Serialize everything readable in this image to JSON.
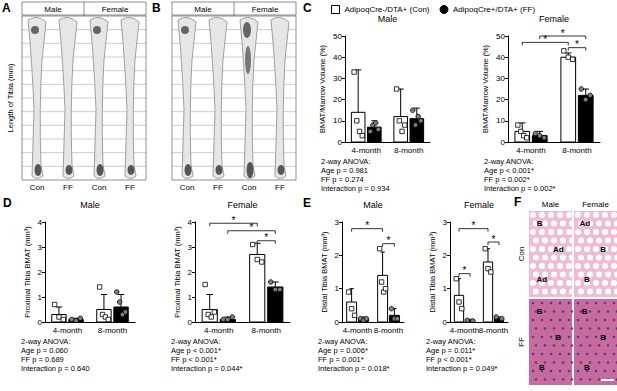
{
  "panels": {
    "A": {
      "label": "A",
      "columns": [
        "Male",
        "Female"
      ],
      "groups": [
        "Con",
        "FF",
        "Con",
        "FF"
      ],
      "ylabel": "Length of Tibia (mm)"
    },
    "B": {
      "label": "B",
      "columns": [
        "Male",
        "Female"
      ],
      "groups": [
        "Con",
        "FF",
        "Con",
        "FF"
      ]
    },
    "F": {
      "label": "F",
      "columns": [
        "Male",
        "Female"
      ],
      "rows": [
        "Con",
        "FF"
      ],
      "tiles": [
        [
          [
            "B",
            "Ad",
            "Ad"
          ],
          [
            "Ad",
            "B",
            "B"
          ]
        ],
        [
          [
            "B",
            "B",
            "B"
          ],
          [
            "B",
            "B",
            "B"
          ]
        ]
      ]
    }
  },
  "chart_data": [
    {
      "type": "bar",
      "panel": "C",
      "title": "Male",
      "legend": "top",
      "categories": [
        "4-month",
        "8-month"
      ],
      "ylabel": "BMAT/Marrow Volume (%)",
      "ylim": [
        0,
        50
      ],
      "yticks": [
        0,
        10,
        20,
        30,
        40,
        50
      ],
      "grid": false,
      "series": [
        {
          "name": "AdipoqCre-/DTA+ (Con)",
          "color": "#ffffff",
          "marker": "square",
          "values": [
            14,
            12
          ],
          "errors": [
            20,
            13
          ],
          "points": [
            [
              33,
              10,
              5,
              3
            ],
            [
              25,
              10,
              5,
              8
            ]
          ]
        },
        {
          "name": "AdipoqCre+/DTA+ (FF)",
          "color": "#000000",
          "marker": "circle",
          "values": [
            7,
            11
          ],
          "errors": [
            3,
            5
          ],
          "points": [
            [
              5,
              8,
              9,
              6
            ],
            [
              15,
              8,
              12,
              10
            ]
          ]
        }
      ],
      "significance": [],
      "annotations": [
        "2-way ANOVA:",
        "Age p = 0.981",
        "FF p = 0.274",
        "Interaction p = 0.934"
      ]
    },
    {
      "type": "bar",
      "title": "Female",
      "categories": [
        "4-month",
        "8-month"
      ],
      "ylabel": "BMAT/Marrow Volume (%)",
      "ylim": [
        0,
        50
      ],
      "yticks": [
        0,
        10,
        20,
        30,
        40,
        50
      ],
      "grid": false,
      "series": [
        {
          "name": "AdipoqCre-/DTA+ (Con)",
          "color": "#ffffff",
          "marker": "square",
          "values": [
            5,
            40
          ],
          "errors": [
            4,
            2
          ],
          "points": [
            [
              8,
              5,
              3,
              2
            ],
            [
              43,
              40,
              39
            ]
          ]
        },
        {
          "name": "AdipoqCre+/DTA+ (FF)",
          "color": "#000000",
          "marker": "circle",
          "values": [
            3,
            22
          ],
          "errors": [
            2,
            3
          ],
          "points": [
            [
              4,
              3,
              2
            ],
            [
              25,
              20,
              22
            ]
          ]
        }
      ],
      "significance": [
        {
          "from": [
            0,
            0
          ],
          "to": [
            1,
            0
          ],
          "y": 47,
          "label": "*"
        },
        {
          "from": [
            0,
            1
          ],
          "to": [
            1,
            1
          ],
          "y": 50,
          "label": "*"
        },
        {
          "from": [
            1,
            0
          ],
          "to": [
            1,
            1
          ],
          "y": 44.5,
          "label": "*"
        }
      ],
      "annotations": [
        "2-way ANOVA:",
        "Age p < 0.001*",
        "FF p = 0.002*",
        "Interaction p = 0.002*"
      ]
    },
    {
      "type": "bar",
      "panel": "D",
      "title": "Male",
      "categories": [
        "4-month",
        "8-month"
      ],
      "ylabel": "Proximal Tibia BMAT (mm³)",
      "ylim": [
        0,
        4
      ],
      "yticks": [
        0,
        1,
        2,
        3,
        4
      ],
      "grid": false,
      "series": [
        {
          "name": "AdipoqCre-/DTA+ (Con)",
          "color": "#ffffff",
          "marker": "square",
          "values": [
            0.3,
            0.5
          ],
          "errors": [
            0.3,
            0.6
          ],
          "points": [
            [
              0.7,
              0.2,
              0.1
            ],
            [
              1.4,
              0.3,
              0.2,
              0.1
            ]
          ]
        },
        {
          "name": "AdipoqCre+/DTA+ (FF)",
          "color": "#000000",
          "marker": "circle",
          "values": [
            0.1,
            0.6
          ],
          "errors": [
            0.05,
            0.5
          ],
          "points": [
            [
              0.1,
              0.05,
              0.15
            ],
            [
              1.2,
              0.8,
              0.3,
              0.4
            ]
          ]
        }
      ],
      "significance": [],
      "annotations": [
        "2-way ANOVA:",
        "Age p = 0.060",
        "FF p = 0.689",
        "Interaction p = 0.640"
      ]
    },
    {
      "type": "bar",
      "title": "Female",
      "categories": [
        "4-month",
        "8-month"
      ],
      "ylabel": "Proximal Tibia BMAT (mm³)",
      "ylim": [
        0,
        4
      ],
      "yticks": [
        0,
        1,
        2,
        3,
        4
      ],
      "grid": false,
      "series": [
        {
          "name": "AdipoqCre-/DTA+ (Con)",
          "color": "#ffffff",
          "marker": "square",
          "values": [
            0.5,
            2.7
          ],
          "errors": [
            0.6,
            0.45
          ],
          "points": [
            [
              1.5,
              0.3,
              0.2,
              0.4
            ],
            [
              3.1,
              2.5,
              2.4
            ]
          ]
        },
        {
          "name": "AdipoqCre+/DTA+ (FF)",
          "color": "#000000",
          "marker": "circle",
          "values": [
            0.1,
            1.4
          ],
          "errors": [
            0.1,
            0.2
          ],
          "points": [
            [
              0.1,
              0.1,
              0.2
            ],
            [
              1.6,
              1.3,
              1.3
            ]
          ]
        }
      ],
      "significance": [
        {
          "from": [
            0,
            0
          ],
          "to": [
            1,
            0
          ],
          "y": 3.95,
          "label": "*"
        },
        {
          "from": [
            0,
            1
          ],
          "to": [
            1,
            1
          ],
          "y": 3.65,
          "label": "*"
        },
        {
          "from": [
            1,
            0
          ],
          "to": [
            1,
            1
          ],
          "y": 3.25,
          "label": "*"
        }
      ],
      "annotations": [
        "2-way ANOVA:",
        "Age p < 0.001*",
        "FF p < 0.001*",
        "Interaction p = 0.044*"
      ]
    },
    {
      "type": "bar",
      "panel": "E",
      "title": "Male",
      "categories": [
        "4-month",
        "8-month"
      ],
      "ylabel": "Distal Tibia BMAT (mm³)",
      "ylim": [
        0,
        3
      ],
      "yticks": [
        0,
        1,
        2,
        3
      ],
      "grid": false,
      "series": [
        {
          "name": "AdipoqCre-/DTA+ (Con)",
          "color": "#ffffff",
          "marker": "square",
          "values": [
            0.6,
            1.4
          ],
          "errors": [
            0.4,
            0.7
          ],
          "points": [
            [
              0.9,
              0.4,
              0.2
            ],
            [
              2.2,
              1.2,
              0.9,
              1.0
            ]
          ]
        },
        {
          "name": "AdipoqCre+/DTA+ (FF)",
          "color": "#000000",
          "marker": "circle",
          "values": [
            0.1,
            0.2
          ],
          "errors": [
            0.05,
            0.2
          ],
          "points": [
            [
              0.1,
              0.05,
              0.1
            ],
            [
              0.4,
              0.1,
              0.1
            ]
          ]
        }
      ],
      "significance": [
        {
          "from": [
            0,
            0
          ],
          "to": [
            1,
            0
          ],
          "y": 2.8,
          "label": "*"
        },
        {
          "from": [
            1,
            0
          ],
          "to": [
            1,
            1
          ],
          "y": 2.35,
          "label": "*"
        }
      ],
      "annotations": [
        "2-way ANOVA:",
        "Age p = 0.006*",
        "FF p = 0.001*",
        "Interaction p = 0.018*"
      ]
    },
    {
      "type": "bar",
      "title": "Female",
      "categories": [
        "4-month",
        "8-month"
      ],
      "ylabel": "Distal Tibia BMAT (mm³)",
      "ylim": [
        0,
        3
      ],
      "yticks": [
        0,
        1,
        2,
        3
      ],
      "grid": false,
      "series": [
        {
          "name": "AdipoqCre-/DTA+ (Con)",
          "color": "#ffffff",
          "marker": "square",
          "values": [
            0.8,
            1.8
          ],
          "errors": [
            0.5,
            0.4
          ],
          "points": [
            [
              1.3,
              0.6,
              0.4
            ],
            [
              2.2,
              1.6,
              1.5
            ]
          ]
        },
        {
          "name": "AdipoqCre+/DTA+ (FF)",
          "color": "#000000",
          "marker": "circle",
          "values": [
            0.05,
            0.1
          ],
          "errors": [
            0.03,
            0.05
          ],
          "points": [
            [
              0.05,
              0.03
            ],
            [
              0.15,
              0.1
            ]
          ]
        }
      ],
      "significance": [
        {
          "from": [
            0,
            0
          ],
          "to": [
            0,
            1
          ],
          "y": 1.45,
          "label": "*"
        },
        {
          "from": [
            0,
            0
          ],
          "to": [
            1,
            0
          ],
          "y": 2.8,
          "label": "*"
        },
        {
          "from": [
            1,
            0
          ],
          "to": [
            1,
            1
          ],
          "y": 2.4,
          "label": "*"
        }
      ],
      "annotations": [
        "2-way ANOVA:",
        "Age p = 0.011*",
        "FF p < 0.001*",
        "Interaction p = 0.049*"
      ]
    }
  ]
}
